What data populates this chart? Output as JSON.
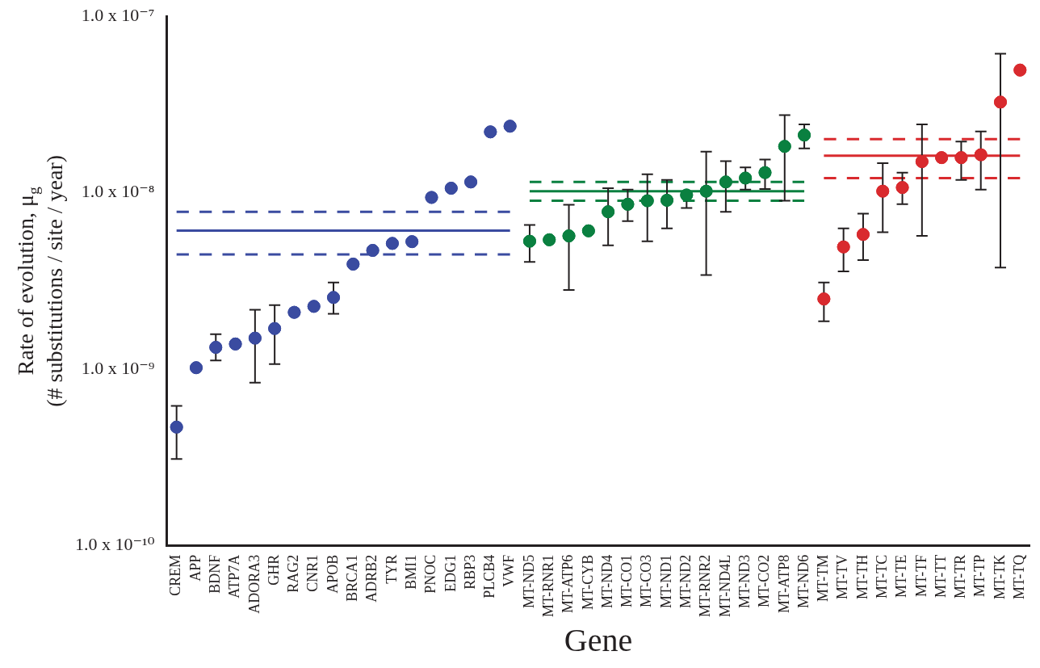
{
  "chart_data": {
    "type": "scatter",
    "xlabel": "Gene",
    "ylabel": "Rate of evolution, μ$_{g}$\n(# substitutions / site / year)",
    "categories": [
      "CREM",
      "APP",
      "BDNF",
      "ATP7A",
      "ADORA3",
      "GHR",
      "RAG2",
      "CNR1",
      "APOB",
      "BRCA1",
      "ADRB2",
      "TYR",
      "BMI1",
      "PNOC",
      "EDG1",
      "RBP3",
      "PLCB4",
      "VWF",
      "MT-ND5",
      "MT-RNR1",
      "MT-ATP6",
      "MT-CYB",
      "MT-ND4",
      "MT-CO1",
      "MT-CO3",
      "MT-ND1",
      "MT-ND2",
      "MT-RNR2",
      "MT-ND4L",
      "MT-ND3",
      "MT-CO2",
      "MT-ATP8",
      "MT-ND6",
      "MT-TM",
      "MT-TV",
      "MT-TH",
      "MT-TC",
      "MT-TE",
      "MT-TF",
      "MT-TT",
      "MT-TR",
      "MT-TP",
      "MT-TK",
      "MT-TQ"
    ],
    "log": "y",
    "ylim": [
      1e-10,
      1e-07
    ],
    "yticks": [
      {
        "value": 1e-10,
        "label": "1.0 x 10⁻¹⁰"
      },
      {
        "value": 1e-09,
        "label": "1.0 x 10⁻⁹"
      },
      {
        "value": 1e-08,
        "label": "1.0 x 10⁻⁸"
      },
      {
        "value": 1e-07,
        "label": "1.0 x 10⁻⁷"
      }
    ],
    "grid": false,
    "legend": false,
    "marker": "circle",
    "series": [
      {
        "color": "#3a4ba0",
        "x": [
          "CREM",
          "APP",
          "BDNF",
          "ATP7A",
          "ADORA3",
          "GHR",
          "RAG2",
          "CNR1",
          "APOB",
          "BRCA1",
          "ADRB2",
          "TYR",
          "BMI1",
          "PNOC",
          "EDG1",
          "RBP3",
          "PLCB4",
          "VWF"
        ],
        "values": [
          4.7e-10,
          1.02e-09,
          1.33e-09,
          1.39e-09,
          1.5e-09,
          1.7e-09,
          2.1e-09,
          2.27e-09,
          2.55e-09,
          3.94e-09,
          4.71e-09,
          5.16e-09,
          5.28e-09,
          9.4e-09,
          1.06e-08,
          1.15e-08,
          2.21e-08,
          2.38e-08
        ],
        "errors": [
          [
            3.1e-10,
            6.2e-10
          ],
          null,
          [
            1.12e-09,
            1.58e-09
          ],
          null,
          [
            8.4e-10,
            2.17e-09
          ],
          [
            1.07e-09,
            2.31e-09
          ],
          null,
          null,
          [
            2.06e-09,
            3.1e-09
          ],
          null,
          null,
          null,
          null,
          null,
          null,
          null,
          null,
          null
        ]
      },
      {
        "color": "#0a8040",
        "x": [
          "MT-ND5",
          "MT-RNR1",
          "MT-ATP6",
          "MT-CYB",
          "MT-ND4",
          "MT-CO1",
          "MT-CO3",
          "MT-ND1",
          "MT-ND2",
          "MT-RNR2",
          "MT-ND4L",
          "MT-ND3",
          "MT-CO2",
          "MT-ATP8",
          "MT-ND6"
        ],
        "values": [
          5.31e-09,
          5.41e-09,
          5.69e-09,
          6.08e-09,
          7.8e-09,
          8.6e-09,
          9e-09,
          9.06e-09,
          9.7e-09,
          1.02e-08,
          1.15e-08,
          1.21e-08,
          1.3e-08,
          1.83e-08,
          2.12e-08
        ],
        "errors": [
          [
            4.05e-09,
            6.57e-09
          ],
          null,
          [
            2.81e-09,
            8.55e-09
          ],
          null,
          [
            5.03e-09,
            1.06e-08
          ],
          [
            6.9e-09,
            1.04e-08
          ],
          [
            5.31e-09,
            1.27e-08
          ],
          [
            6.27e-09,
            1.18e-08
          ],
          [
            8.2e-09,
            9.7e-09
          ],
          [
            3.42e-09,
            1.71e-08
          ],
          [
            7.8e-09,
            1.51e-08
          ],
          [
            1.04e-08,
            1.39e-08
          ],
          [
            1.05e-08,
            1.54e-08
          ],
          [
            9e-09,
            2.75e-08
          ],
          [
            1.78e-08,
            2.44e-08
          ]
        ]
      },
      {
        "color": "#d92a2e",
        "x": [
          "MT-TM",
          "MT-TV",
          "MT-TH",
          "MT-TC",
          "MT-TE",
          "MT-TF",
          "MT-TT",
          "MT-TR",
          "MT-TP",
          "MT-TK",
          "MT-TQ"
        ],
        "values": [
          2.5e-09,
          4.93e-09,
          5.8e-09,
          1.02e-08,
          1.07e-08,
          1.5e-08,
          1.58e-08,
          1.58e-08,
          1.64e-08,
          3.26e-08,
          4.95e-08
        ],
        "errors": [
          [
            1.87e-09,
            3.1e-09
          ],
          [
            3.58e-09,
            6.27e-09
          ],
          [
            4.15e-09,
            7.6e-09
          ],
          [
            5.97e-09,
            1.47e-08
          ],
          [
            8.6e-09,
            1.3e-08
          ],
          [
            5.69e-09,
            2.44e-08
          ],
          null,
          [
            1.18e-08,
            1.95e-08
          ],
          [
            1.04e-08,
            2.22e-08
          ],
          [
            3.77e-09,
            6.12e-08
          ],
          null
        ]
      },
      {
        "type": "line",
        "marker": "none",
        "line_style": "solid",
        "color": "#3a4ba0",
        "x": [
          "CREM",
          "VWF"
        ],
        "values": [
          6.1e-09,
          6.1e-09
        ]
      },
      {
        "type": "line",
        "marker": "none",
        "line_style": "dashed",
        "color": "#3a4ba0",
        "x": [
          "CREM",
          "VWF"
        ],
        "values": [
          7.8e-09,
          7.8e-09
        ]
      },
      {
        "type": "line",
        "marker": "none",
        "line_style": "dashed",
        "color": "#3a4ba0",
        "x": [
          "CREM",
          "VWF"
        ],
        "values": [
          4.47e-09,
          4.47e-09
        ]
      },
      {
        "type": "line",
        "marker": "none",
        "line_style": "solid",
        "color": "#0a8040",
        "x": [
          "MT-ND5",
          "MT-ND6"
        ],
        "values": [
          1.02e-08,
          1.02e-08
        ]
      },
      {
        "type": "line",
        "marker": "none",
        "line_style": "dashed",
        "color": "#0a8040",
        "x": [
          "MT-ND5",
          "MT-ND6"
        ],
        "values": [
          1.15e-08,
          1.15e-08
        ]
      },
      {
        "type": "line",
        "marker": "none",
        "line_style": "dashed",
        "color": "#0a8040",
        "x": [
          "MT-ND5",
          "MT-ND6"
        ],
        "values": [
          9e-09,
          9e-09
        ]
      },
      {
        "type": "line",
        "marker": "none",
        "line_style": "solid",
        "color": "#d92a2e",
        "x": [
          "MT-TM",
          "MT-TQ"
        ],
        "values": [
          1.62e-08,
          1.62e-08
        ]
      },
      {
        "type": "line",
        "marker": "none",
        "line_style": "dashed",
        "color": "#d92a2e",
        "x": [
          "MT-TM",
          "MT-TQ"
        ],
        "values": [
          2.01e-08,
          2.01e-08
        ]
      },
      {
        "type": "line",
        "marker": "none",
        "line_style": "dashed",
        "color": "#d92a2e",
        "x": [
          "MT-TM",
          "MT-TQ"
        ],
        "values": [
          1.21e-08,
          1.21e-08
        ]
      }
    ]
  }
}
